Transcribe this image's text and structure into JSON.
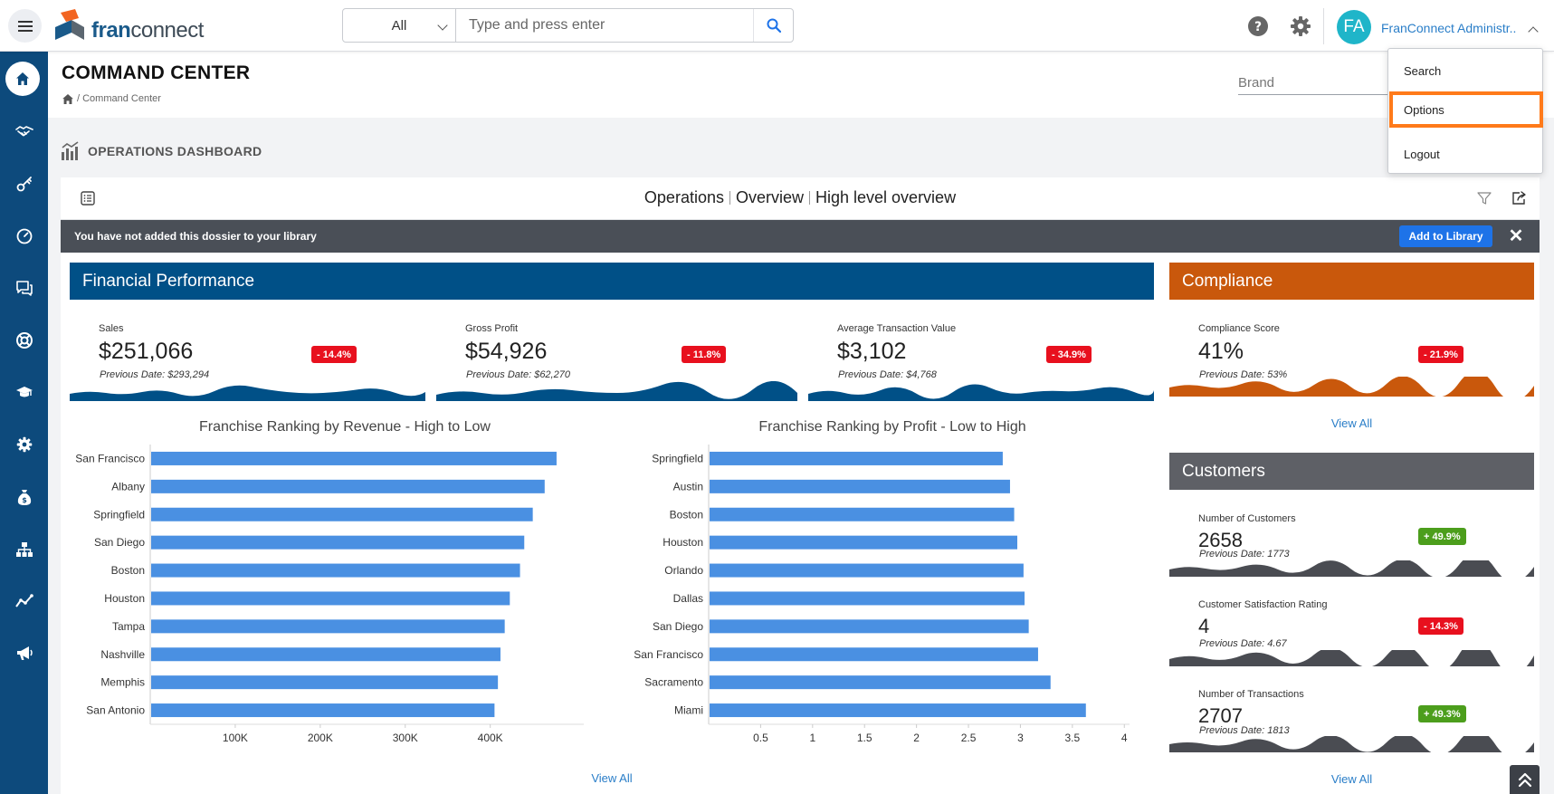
{
  "header": {
    "logo_fran": "fran",
    "logo_connect": "connect",
    "search_scope": "All",
    "search_placeholder": "Type and press enter",
    "user_initials": "FA",
    "user_name": "FranConnect Administr..."
  },
  "user_menu": {
    "items": [
      "Search",
      "Options",
      "Logout"
    ],
    "highlighted": "Options"
  },
  "page": {
    "title": "COMMAND CENTER",
    "breadcrumb": "/ Command Center",
    "brand_label": "Brand"
  },
  "section": {
    "title": "OPERATIONS DASHBOARD"
  },
  "dossier": {
    "part1": "Operations",
    "part2": "Overview",
    "part3": "High level overview",
    "notice": "You have not added this dossier to your library",
    "add_button": "Add to Library",
    "close": "✕"
  },
  "financial": {
    "title": "Financial Performance",
    "color": "#005087",
    "kpis": [
      {
        "label": "Sales",
        "value": "$251,066",
        "change": "- 14.4%",
        "prev": "Previous Date: $293,294"
      },
      {
        "label": "Gross Profit",
        "value": "$54,926",
        "change": "- 11.8%",
        "prev": "Previous Date: $62,270"
      },
      {
        "label": "Average Transaction Value",
        "value": "$3,102",
        "change": "- 34.9%",
        "prev": "Previous Date: $4,768"
      }
    ],
    "view_all": "View All"
  },
  "compliance": {
    "title": "Compliance",
    "color": "#c9580c",
    "kpi": {
      "label": "Compliance Score",
      "value": "41%",
      "change": "- 21.9%",
      "prev": "Previous Date: 53%"
    },
    "view_all": "View All"
  },
  "customers": {
    "title": "Customers",
    "color": "#5e6066",
    "kpis": [
      {
        "label": "Number of Customers",
        "value": "2658",
        "change": "+ 49.9%",
        "prev": "Previous Date: 1773"
      },
      {
        "label": "Customer Satisfaction Rating",
        "value": "4",
        "change": "- 14.3%",
        "prev": "Previous Date: 4.67"
      },
      {
        "label": "Number of Transactions",
        "value": "2707",
        "change": "+ 49.3%",
        "prev": "Previous Date: 1813"
      }
    ],
    "view_all": "View All"
  },
  "chart_data": [
    {
      "type": "bar",
      "orientation": "horizontal",
      "title": "Franchise Ranking by Revenue - High to Low",
      "categories": [
        "San Francisco",
        "Albany",
        "Springfield",
        "San Diego",
        "Boston",
        "Houston",
        "Tampa",
        "Nashville",
        "Memphis",
        "San Antonio"
      ],
      "values": [
        478000,
        464000,
        450000,
        440000,
        435000,
        423000,
        417000,
        412000,
        409000,
        405000
      ],
      "xlim": [
        0,
        510000
      ],
      "xticks": [
        100000,
        200000,
        300000,
        400000
      ],
      "xtick_labels": [
        "100K",
        "200K",
        "300K",
        "400K"
      ],
      "color": "#4a90e2"
    },
    {
      "type": "bar",
      "orientation": "horizontal",
      "title": "Franchise Ranking by Profit - Low to High",
      "categories": [
        "Springfield",
        "Austin",
        "Boston",
        "Houston",
        "Orlando",
        "Dallas",
        "San Diego",
        "San Francisco",
        "Sacramento",
        "Miami"
      ],
      "values": [
        2.83,
        2.9,
        2.94,
        2.97,
        3.03,
        3.04,
        3.08,
        3.17,
        3.29,
        3.63
      ],
      "xlim": [
        0,
        4.05
      ],
      "xticks": [
        0.5,
        1,
        1.5,
        2,
        2.5,
        3,
        3.5,
        4
      ],
      "xtick_labels": [
        "0.5",
        "1",
        "1.5",
        "2",
        "2.5",
        "3",
        "3.5",
        "4"
      ],
      "color": "#4a90e2"
    }
  ]
}
